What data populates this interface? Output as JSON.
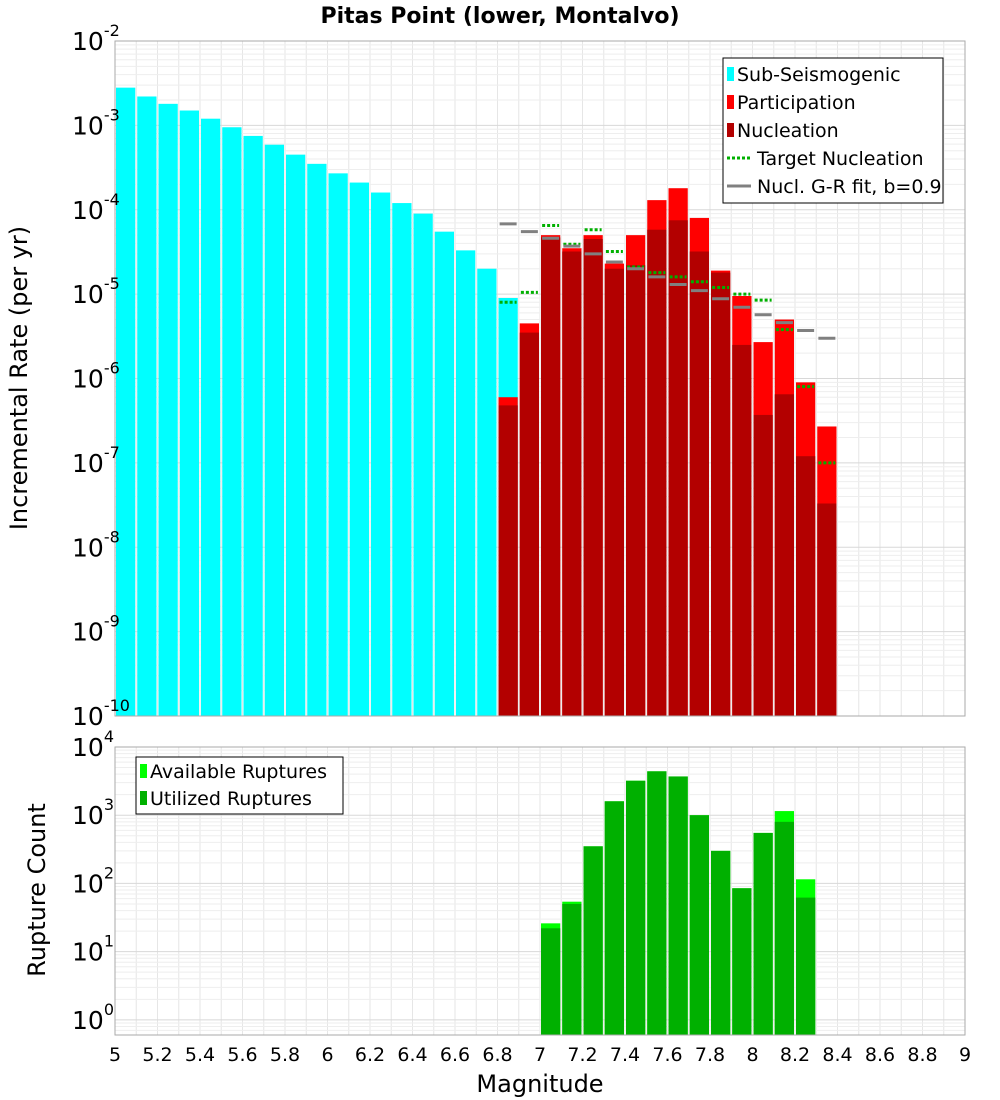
{
  "chart_data": [
    {
      "type": "bar",
      "title": "Pitas Point (lower, Montalvo)",
      "xlabel": "",
      "ylabel": "Incremental Rate (per yr)",
      "xlim": [
        5,
        9
      ],
      "ylim": [
        1e-10,
        0.01
      ],
      "yscale": "log",
      "yticks": [
        {
          "base": "10",
          "exp": "-2"
        },
        {
          "base": "10",
          "exp": "-3"
        },
        {
          "base": "10",
          "exp": "-4"
        },
        {
          "base": "10",
          "exp": "-5"
        },
        {
          "base": "10",
          "exp": "-6"
        },
        {
          "base": "10",
          "exp": "-7"
        },
        {
          "base": "10",
          "exp": "-8"
        },
        {
          "base": "10",
          "exp": "-9"
        },
        {
          "base": "10",
          "exp": "-10"
        }
      ],
      "grid": true,
      "legend_position": "top-right",
      "series": [
        {
          "name": "Sub-Seismogenic",
          "kind": "bar",
          "color": "#00ffff",
          "x": [
            5.05,
            5.15,
            5.25,
            5.35,
            5.45,
            5.55,
            5.65,
            5.75,
            5.85,
            5.95,
            6.05,
            6.15,
            6.25,
            6.35,
            6.45,
            6.55,
            6.65,
            6.75,
            6.85
          ],
          "values": [
            0.0028,
            0.0022,
            0.0018,
            0.0015,
            0.0012,
            0.00095,
            0.00075,
            0.00059,
            0.00045,
            0.00035,
            0.00027,
            0.00021,
            0.00016,
            0.00012,
            9e-05,
            5.5e-05,
            3.3e-05,
            2e-05,
            9e-06
          ]
        },
        {
          "name": "Participation",
          "kind": "bar",
          "color": "#ff0000",
          "x": [
            6.85,
            6.95,
            7.05,
            7.15,
            7.25,
            7.35,
            7.45,
            7.55,
            7.65,
            7.75,
            7.85,
            7.95,
            8.05,
            8.15,
            8.25,
            8.35
          ],
          "values": [
            6e-07,
            4.5e-06,
            5e-05,
            3.5e-05,
            5e-05,
            2.3e-05,
            5e-05,
            0.00013,
            0.00018,
            8e-05,
            1.9e-05,
            9.5e-06,
            2.7e-06,
            5e-06,
            9e-07,
            2.7e-07
          ]
        },
        {
          "name": "Nucleation",
          "kind": "bar",
          "color": "#b30000",
          "x": [
            6.85,
            6.95,
            7.05,
            7.15,
            7.25,
            7.35,
            7.45,
            7.55,
            7.65,
            7.75,
            7.85,
            7.95,
            8.05,
            8.15,
            8.25,
            8.35
          ],
          "values": [
            4.8e-07,
            3.5e-06,
            4.7e-05,
            3.2e-05,
            4.5e-05,
            2e-05,
            2.2e-05,
            5.8e-05,
            7.5e-05,
            3.2e-05,
            1.8e-05,
            2.5e-06,
            3.7e-07,
            6.5e-07,
            1.2e-07,
            3.3e-08
          ]
        },
        {
          "name": "Target Nucleation",
          "kind": "step",
          "color": "#00b000",
          "x": [
            6.85,
            6.95,
            7.05,
            7.15,
            7.25,
            7.35,
            7.45,
            7.55,
            7.65,
            7.75,
            7.85,
            7.95,
            8.05,
            8.15,
            8.25,
            8.35
          ],
          "values": [
            8e-06,
            1.05e-05,
            6.5e-05,
            3.9e-05,
            5.8e-05,
            3.2e-05,
            2.1e-05,
            1.8e-05,
            1.6e-05,
            1.4e-05,
            1.2e-05,
            1e-05,
            8.5e-06,
            3.8e-06,
            8e-07,
            1e-07
          ]
        },
        {
          "name": "Nucl. G-R fit, b=0.9",
          "kind": "step",
          "color": "#808080",
          "x": [
            6.85,
            6.95,
            7.05,
            7.15,
            7.25,
            7.35,
            7.45,
            7.55,
            7.65,
            7.75,
            7.85,
            7.95,
            8.05,
            8.15,
            8.25,
            8.35
          ],
          "values": [
            6.8e-05,
            5.5e-05,
            4.6e-05,
            3.7e-05,
            3e-05,
            2.4e-05,
            2e-05,
            1.6e-05,
            1.3e-05,
            1.1e-05,
            8.8e-06,
            7e-06,
            5.7e-06,
            4.6e-06,
            3.7e-06,
            3e-06
          ]
        }
      ]
    },
    {
      "type": "bar",
      "title": "",
      "xlabel": "Magnitude",
      "ylabel": "Rupture Count",
      "xlim": [
        5,
        9
      ],
      "ylim": [
        0.6,
        10000.0
      ],
      "yscale": "log",
      "yticks": [
        {
          "base": "10",
          "exp": "4"
        },
        {
          "base": "10",
          "exp": "3"
        },
        {
          "base": "10",
          "exp": "2"
        },
        {
          "base": "10",
          "exp": "1"
        },
        {
          "base": "10",
          "exp": "0"
        }
      ],
      "xticks": [
        "5",
        "5.2",
        "5.4",
        "5.6",
        "5.8",
        "6",
        "6.2",
        "6.4",
        "6.6",
        "6.8",
        "7",
        "7.2",
        "7.4",
        "7.6",
        "7.8",
        "8",
        "8.2",
        "8.4",
        "8.6",
        "8.8",
        "9"
      ],
      "grid": true,
      "legend_position": "top-left",
      "series": [
        {
          "name": "Available Ruptures",
          "kind": "bar",
          "color": "#00ff00",
          "x": [
            7.05,
            7.15,
            7.25,
            7.35,
            7.45,
            7.55,
            7.65,
            7.75,
            7.85,
            7.95,
            8.05,
            8.15,
            8.25
          ],
          "values": [
            26,
            54,
            350,
            1600,
            3200,
            4400,
            3700,
            1000,
            300,
            85,
            550,
            1150,
            115
          ]
        },
        {
          "name": "Utilized Ruptures",
          "kind": "bar",
          "color": "#00b000",
          "x": [
            7.05,
            7.15,
            7.25,
            7.35,
            7.45,
            7.55,
            7.65,
            7.75,
            7.85,
            7.95,
            8.05,
            8.15,
            8.25
          ],
          "values": [
            22,
            50,
            350,
            1600,
            3200,
            4400,
            3700,
            1000,
            300,
            85,
            550,
            800,
            62
          ]
        }
      ]
    }
  ]
}
